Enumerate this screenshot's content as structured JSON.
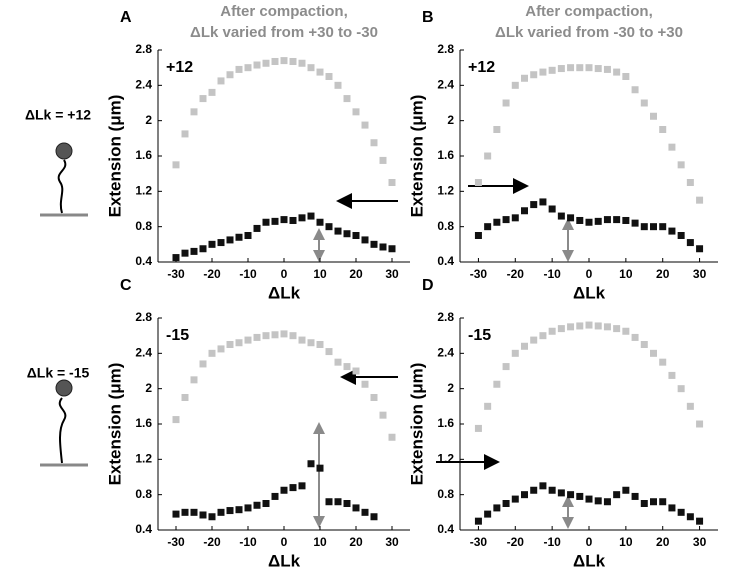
{
  "chart_data": [
    {
      "type": "scatter",
      "label": "A",
      "title_lines": [
        "After compaction,",
        "ΔLk  varied from +30 to -30"
      ],
      "annotation": "+12",
      "xlabel": "ΔLk",
      "ylabel": "Extension (μm)",
      "x": [
        -30,
        -27.5,
        -25,
        -22.5,
        -20,
        -17.5,
        -15,
        -12.5,
        -10,
        -7.5,
        -5,
        -2.5,
        0,
        2.5,
        5,
        7.5,
        10,
        12.5,
        15,
        17.5,
        20,
        22.5,
        25,
        27.5,
        30
      ],
      "series": [
        {
          "color": "#c4c4c4",
          "values": [
            1.5,
            1.85,
            2.1,
            2.25,
            2.32,
            2.45,
            2.52,
            2.58,
            2.6,
            2.63,
            2.65,
            2.67,
            2.68,
            2.67,
            2.65,
            2.6,
            2.55,
            2.5,
            2.4,
            2.25,
            2.1,
            1.95,
            1.75,
            1.55,
            1.3
          ]
        },
        {
          "color": "#111111",
          "values": [
            0.45,
            0.5,
            0.52,
            0.55,
            0.6,
            0.62,
            0.65,
            0.68,
            0.7,
            0.78,
            0.85,
            0.86,
            0.88,
            0.87,
            0.9,
            0.92,
            0.85,
            0.8,
            0.75,
            0.72,
            0.7,
            0.65,
            0.6,
            0.57,
            0.55
          ]
        }
      ],
      "xlim": [
        -35,
        35
      ],
      "xticks": [
        -30,
        -20,
        -10,
        0,
        10,
        20,
        30
      ],
      "ylim": [
        0.4,
        2.8
      ],
      "yticks": [
        0.4,
        0.8,
        1.2,
        1.6,
        2.0,
        2.4,
        2.8
      ]
    },
    {
      "type": "scatter",
      "label": "B",
      "title_lines": [
        "After compaction,",
        "ΔLk varied from -30 to +30"
      ],
      "annotation": "+12",
      "xlabel": "ΔLk",
      "ylabel": "Extension (μm)",
      "x": [
        -30,
        -27.5,
        -25,
        -22.5,
        -20,
        -17.5,
        -15,
        -12.5,
        -10,
        -7.5,
        -5,
        -2.5,
        0,
        2.5,
        5,
        7.5,
        10,
        12.5,
        15,
        17.5,
        20,
        22.5,
        25,
        27.5,
        30
      ],
      "series": [
        {
          "color": "#c4c4c4",
          "values": [
            1.3,
            1.6,
            1.9,
            2.2,
            2.4,
            2.48,
            2.52,
            2.55,
            2.57,
            2.59,
            2.6,
            2.6,
            2.6,
            2.59,
            2.58,
            2.55,
            2.5,
            2.35,
            2.2,
            2.05,
            1.9,
            1.7,
            1.5,
            1.3,
            1.1
          ]
        },
        {
          "color": "#111111",
          "values": [
            0.7,
            0.8,
            0.85,
            0.88,
            0.9,
            0.98,
            1.05,
            1.08,
            1.0,
            0.92,
            0.9,
            0.87,
            0.85,
            0.86,
            0.88,
            0.88,
            0.87,
            0.84,
            0.8,
            0.8,
            0.8,
            0.75,
            0.7,
            0.62,
            0.55
          ]
        }
      ],
      "xlim": [
        -35,
        35
      ],
      "xticks": [
        -30,
        -20,
        -10,
        0,
        10,
        20,
        30
      ],
      "ylim": [
        0.4,
        2.8
      ],
      "yticks": [
        0.4,
        0.8,
        1.2,
        1.6,
        2.0,
        2.4,
        2.8
      ]
    },
    {
      "type": "scatter",
      "label": "C",
      "annotation": "-15",
      "xlabel": "ΔLk",
      "ylabel": "Extension (μm)",
      "x": [
        -30,
        -27.5,
        -25,
        -22.5,
        -20,
        -17.5,
        -15,
        -12.5,
        -10,
        -7.5,
        -5,
        -2.5,
        0,
        2.5,
        5,
        7.5,
        10,
        12.5,
        15,
        17.5,
        20,
        22.5,
        25,
        27.5,
        30
      ],
      "series": [
        {
          "color": "#c4c4c4",
          "values": [
            1.65,
            1.9,
            2.1,
            2.28,
            2.4,
            2.45,
            2.5,
            2.52,
            2.55,
            2.58,
            2.6,
            2.61,
            2.62,
            2.6,
            2.55,
            2.52,
            2.5,
            2.42,
            2.3,
            2.25,
            2.2,
            2.05,
            1.9,
            1.7,
            1.45
          ]
        },
        {
          "color": "#111111",
          "values": [
            0.58,
            0.6,
            0.6,
            0.57,
            0.55,
            0.6,
            0.62,
            0.63,
            0.65,
            0.68,
            0.7,
            0.78,
            0.85,
            0.88,
            0.9,
            1.15,
            1.1,
            0.72,
            0.72,
            0.7,
            0.65,
            0.6,
            0.55,
            null,
            null
          ]
        }
      ],
      "xlim": [
        -35,
        35
      ],
      "xticks": [
        -30,
        -20,
        -10,
        0,
        10,
        20,
        30
      ],
      "ylim": [
        0.4,
        2.8
      ],
      "yticks": [
        0.4,
        0.8,
        1.2,
        1.6,
        2.0,
        2.4,
        2.8
      ]
    },
    {
      "type": "scatter",
      "label": "D",
      "annotation": "-15",
      "xlabel": "ΔLk",
      "ylabel": "Extension (μm)",
      "x": [
        -30,
        -27.5,
        -25,
        -22.5,
        -20,
        -17.5,
        -15,
        -12.5,
        -10,
        -7.5,
        -5,
        -2.5,
        0,
        2.5,
        5,
        7.5,
        10,
        12.5,
        15,
        17.5,
        20,
        22.5,
        25,
        27.5,
        30
      ],
      "series": [
        {
          "color": "#c4c4c4",
          "values": [
            1.55,
            1.8,
            2.05,
            2.25,
            2.4,
            2.48,
            2.55,
            2.6,
            2.65,
            2.68,
            2.7,
            2.71,
            2.72,
            2.71,
            2.7,
            2.68,
            2.65,
            2.58,
            2.5,
            2.4,
            2.3,
            2.15,
            2.0,
            1.8,
            1.6
          ]
        },
        {
          "color": "#111111",
          "values": [
            0.5,
            0.58,
            0.65,
            0.7,
            0.75,
            0.8,
            0.85,
            0.9,
            0.85,
            0.82,
            0.8,
            0.78,
            0.75,
            0.73,
            0.72,
            0.8,
            0.85,
            0.78,
            0.7,
            0.72,
            0.72,
            0.65,
            0.6,
            0.55,
            0.5
          ]
        }
      ],
      "xlim": [
        -35,
        35
      ],
      "xticks": [
        -30,
        -20,
        -10,
        0,
        10,
        20,
        30
      ],
      "ylim": [
        0.4,
        2.8
      ],
      "yticks": [
        0.4,
        0.8,
        1.2,
        1.6,
        2.0,
        2.4,
        2.8
      ]
    }
  ],
  "side_labels": [
    "ΔLk = +12",
    "ΔLk = -15"
  ]
}
